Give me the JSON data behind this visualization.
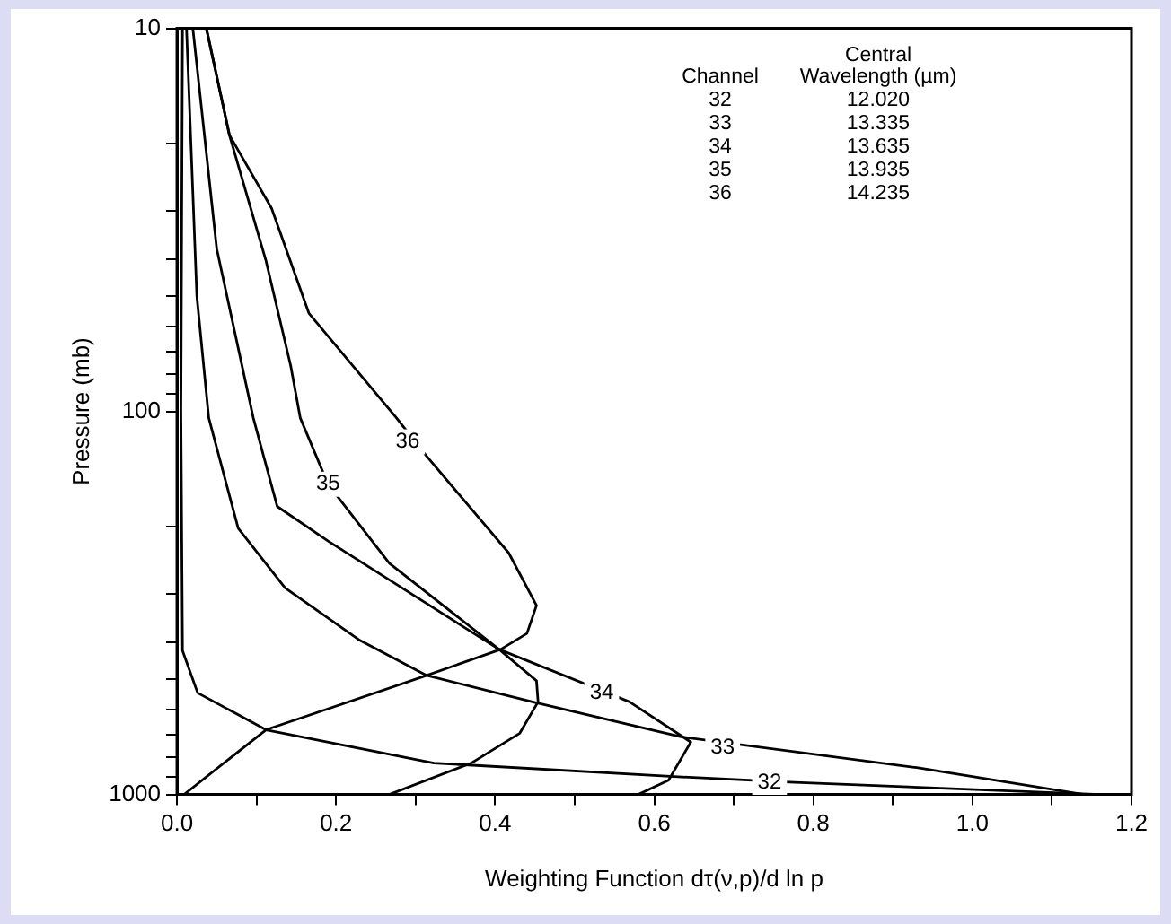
{
  "chart_data": {
    "type": "line",
    "xlabel": "Weighting Function dτ(ν,p)/d ln p",
    "ylabel": "Pressure (mb)",
    "log": "y",
    "grid": false,
    "legend": false,
    "marker": "none",
    "line_style": "solid",
    "xlim": [
      0,
      1.2
    ],
    "xticks": [
      {
        "value": 0,
        "label": "0.0"
      },
      {
        "value": 0.1,
        "label": null
      },
      {
        "value": 0.2,
        "label": "0.2"
      },
      {
        "value": 0.3,
        "label": null
      },
      {
        "value": 0.4,
        "label": "0.4"
      },
      {
        "value": 0.5,
        "label": null
      },
      {
        "value": 0.6,
        "label": "0.6"
      },
      {
        "value": 0.7,
        "label": null
      },
      {
        "value": 0.8,
        "label": "0.8"
      },
      {
        "value": 0.9,
        "label": null
      },
      {
        "value": 1,
        "label": "1.0"
      },
      {
        "value": 1.1,
        "label": null
      },
      {
        "value": 1.2,
        "label": "1.2"
      }
    ],
    "ylim": [
      1000,
      10
    ],
    "yticks": [
      10,
      {
        "value": 20,
        "label": null
      },
      {
        "value": 30,
        "label": null
      },
      {
        "value": 40,
        "label": null
      },
      {
        "value": 50,
        "label": null
      },
      {
        "value": 60,
        "label": null
      },
      {
        "value": 70,
        "label": null
      },
      {
        "value": 80,
        "label": null
      },
      {
        "value": 90,
        "label": null
      },
      100,
      {
        "value": 200,
        "label": null
      },
      {
        "value": 300,
        "label": null
      },
      {
        "value": 400,
        "label": null
      },
      {
        "value": 500,
        "label": null
      },
      {
        "value": 600,
        "label": null
      },
      {
        "value": 700,
        "label": null
      },
      {
        "value": 800,
        "label": null
      },
      {
        "value": 900,
        "label": null
      },
      1000
    ],
    "series": [
      {
        "color": "#000000",
        "x": [
          0.007,
          0.005,
          0.007,
          0.026,
          0.112,
          0.323,
          0.635,
          0.77,
          1.16
        ],
        "values": [
          10,
          100,
          421,
          543,
          678,
          828,
          900,
          929,
          1000
        ]
      },
      {
        "color": "#000000",
        "x": [
          0.012,
          0.025,
          0.04,
          0.077,
          0.136,
          0.23,
          0.314,
          0.447,
          0.635,
          0.93,
          1.14
        ],
        "values": [
          10,
          50,
          104,
          202,
          289,
          396,
          489,
          573,
          708,
          851,
          1000
        ]
      },
      {
        "color": "#000000",
        "x": [
          0.02,
          0.05,
          0.096,
          0.126,
          0.19,
          0.283,
          0.405,
          0.569,
          0.646,
          0.618,
          0.58
        ],
        "values": [
          10,
          37.6,
          104,
          177,
          218,
          289,
          418,
          573,
          730,
          918,
          1000
        ]
      },
      {
        "color": "#000000",
        "x": [
          0.037,
          0.066,
          0.112,
          0.143,
          0.155,
          0.19,
          0.267,
          0.405,
          0.452,
          0.454,
          0.431,
          0.37,
          0.267
        ],
        "values": [
          10,
          19,
          40.5,
          76,
          104,
          155,
          249,
          418,
          505,
          573,
          692,
          828,
          1000
        ]
      },
      {
        "color": "#000000",
        "x": [
          0.037,
          0.066,
          0.119,
          0.166,
          0.276,
          0.314,
          0.417,
          0.452,
          0.44,
          0.407,
          0.314,
          0.112,
          0.009
        ],
        "values": [
          10,
          19,
          29.5,
          55.5,
          104,
          131,
          234,
          321,
          380,
          418,
          489,
          678,
          1000
        ]
      }
    ],
    "annotations": [
      "Channel",
      "Central Wavelength (µm)",
      "32",
      "12.020",
      "33",
      "13.335",
      "34",
      "13.635",
      "35",
      "13.935",
      "36",
      "14.235",
      {
        "text": "32",
        "x": 0.745,
        "y": 929
      },
      {
        "text": "33",
        "x": 0.686,
        "y": 753
      },
      {
        "text": "34",
        "x": 0.534,
        "y": 543
      },
      {
        "text": "35",
        "x": 0.19,
        "y": 155
      },
      {
        "text": "36",
        "x": 0.29,
        "y": 120
      }
    ]
  }
}
